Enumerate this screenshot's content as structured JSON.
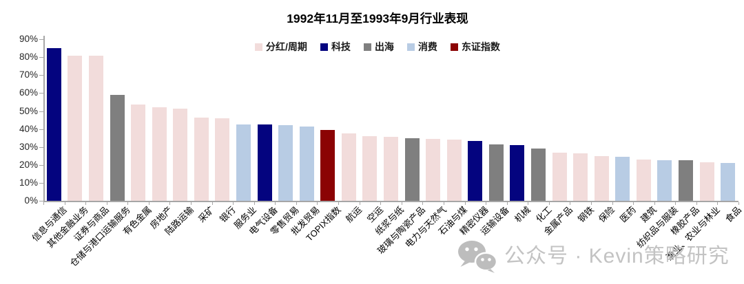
{
  "watermark": {
    "icon": "wechat-icon",
    "text": "公众号 · Kevin策略研究"
  },
  "chart_data": {
    "type": "bar",
    "title": "1992年11月至1993年9月行业表现",
    "xlabel": "",
    "ylabel": "",
    "ylim": [
      0,
      90
    ],
    "grid": false,
    "legend_position": "top-center",
    "y_axis": {
      "tick_labels": [
        "0%",
        "10%",
        "20%",
        "30%",
        "40%",
        "50%",
        "60%",
        "70%",
        "80%",
        "90%"
      ],
      "step": 10
    },
    "legend": [
      {
        "label": "分红/周期",
        "color": "#f2dcdb"
      },
      {
        "label": "科技",
        "color": "#04047f"
      },
      {
        "label": "出海",
        "color": "#7f7f7f"
      },
      {
        "label": "消费",
        "color": "#b8cce4"
      },
      {
        "label": "东证指数",
        "color": "#8b0304"
      }
    ],
    "bars": [
      {
        "label": "信息与通信",
        "value": 85,
        "group": "科技"
      },
      {
        "label": "其他金融业务",
        "value": 81,
        "group": "分红/周期"
      },
      {
        "label": "证券与商品",
        "value": 81,
        "group": "分红/周期"
      },
      {
        "label": "仓储与港口运输服务",
        "value": 59,
        "group": "出海"
      },
      {
        "label": "有色金属",
        "value": 53.5,
        "group": "分红/周期"
      },
      {
        "label": "房地产",
        "value": 52,
        "group": "分红/周期"
      },
      {
        "label": "陆路运输",
        "value": 51.5,
        "group": "分红/周期"
      },
      {
        "label": "采矿",
        "value": 46.5,
        "group": "分红/周期"
      },
      {
        "label": "银行",
        "value": 46,
        "group": "分红/周期"
      },
      {
        "label": "服务业",
        "value": 42.5,
        "group": "消费"
      },
      {
        "label": "电气设备",
        "value": 42.5,
        "group": "科技"
      },
      {
        "label": "零售贸易",
        "value": 42,
        "group": "消费"
      },
      {
        "label": "批发贸易",
        "value": 41.5,
        "group": "消费"
      },
      {
        "label": "TOPIX指数",
        "value": 39.5,
        "group": "东证指数"
      },
      {
        "label": "航运",
        "value": 37.5,
        "group": "分红/周期"
      },
      {
        "label": "空运",
        "value": 36,
        "group": "分红/周期"
      },
      {
        "label": "纸浆与纸",
        "value": 35.5,
        "group": "分红/周期"
      },
      {
        "label": "玻璃与陶瓷产品",
        "value": 35,
        "group": "出海"
      },
      {
        "label": "电力与天然气",
        "value": 34.5,
        "group": "分红/周期"
      },
      {
        "label": "石油与煤",
        "value": 34,
        "group": "分红/周期"
      },
      {
        "label": "精密仪器",
        "value": 33.5,
        "group": "科技"
      },
      {
        "label": "运输设备",
        "value": 31.5,
        "group": "出海"
      },
      {
        "label": "机械",
        "value": 31,
        "group": "科技"
      },
      {
        "label": "化工",
        "value": 29,
        "group": "出海"
      },
      {
        "label": "金属产品",
        "value": 27,
        "group": "分红/周期"
      },
      {
        "label": "钢铁",
        "value": 26.5,
        "group": "分红/周期"
      },
      {
        "label": "保险",
        "value": 25,
        "group": "分红/周期"
      },
      {
        "label": "医药",
        "value": 24.5,
        "group": "消费"
      },
      {
        "label": "建筑",
        "value": 23,
        "group": "分红/周期"
      },
      {
        "label": "纺织品与服装",
        "value": 22.5,
        "group": "消费"
      },
      {
        "label": "橡胶产品",
        "value": 22.5,
        "group": "出海"
      },
      {
        "label": "渔业、农业与林业",
        "value": 21.5,
        "group": "分红/周期"
      },
      {
        "label": "食品",
        "value": 21,
        "group": "消费"
      }
    ]
  }
}
